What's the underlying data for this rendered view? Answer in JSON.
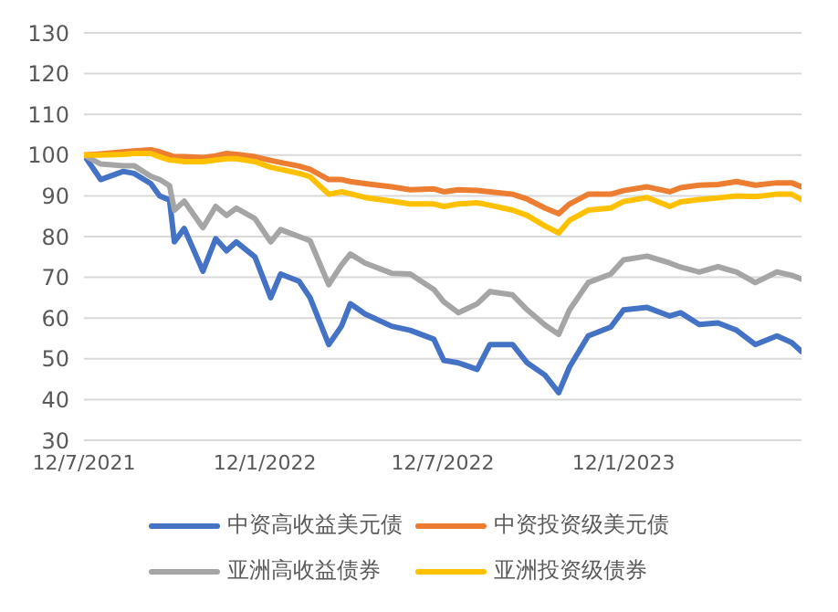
{
  "chart_data": {
    "type": "line",
    "x": [
      "2021-07-12",
      "2021-07-29",
      "2021-08-21",
      "2021-09-01",
      "2021-09-18",
      "2021-09-27",
      "2021-10-07",
      "2021-10-12",
      "2021-10-22",
      "2021-11-10",
      "2021-11-23",
      "2021-12-04",
      "2021-12-14",
      "2022-01-02",
      "2022-01-18",
      "2022-01-28",
      "2022-02-16",
      "2022-02-27",
      "2022-03-18",
      "2022-03-31",
      "2022-04-09",
      "2022-04-24",
      "2022-05-21",
      "2022-06-09",
      "2022-07-03",
      "2022-07-13",
      "2022-07-28",
      "2022-08-16",
      "2022-08-29",
      "2022-09-21",
      "2022-10-06",
      "2022-10-24",
      "2022-11-07",
      "2022-11-18",
      "2022-12-07",
      "2022-12-30",
      "2023-01-12",
      "2023-02-05",
      "2023-02-28",
      "2023-03-11",
      "2023-03-30",
      "2023-04-18",
      "2023-05-07",
      "2023-05-26",
      "2023-06-17",
      "2023-07-02",
      "2023-07-12"
    ],
    "series": [
      {
        "name": "中资高收益美元债",
        "color": "#4472c4",
        "values": [
          100,
          94,
          96,
          95.5,
          93,
          90,
          89,
          78.7,
          82,
          71.5,
          79.5,
          76.5,
          78.7,
          75,
          65,
          70.8,
          69,
          65,
          53.5,
          58,
          63.5,
          61,
          58,
          57,
          54.8,
          49.6,
          49,
          47.4,
          53.5,
          53.5,
          49,
          46,
          41.7,
          48,
          55.6,
          57.8,
          62,
          62.6,
          60.5,
          61.3,
          58.4,
          58.8,
          57,
          53.5,
          55.6,
          54,
          51.8
        ]
      },
      {
        "name": "中资投资级美元债",
        "color": "#ed7d31",
        "values": [
          100,
          100.3,
          100.8,
          101,
          101.3,
          100.8,
          100,
          99.6,
          99.6,
          99.4,
          99.8,
          100.4,
          100.2,
          99.6,
          98.7,
          98.2,
          97.3,
          96.5,
          94,
          94,
          93.5,
          93,
          92.2,
          91.5,
          91.7,
          91,
          91.5,
          91.3,
          91,
          90.4,
          89.2,
          87,
          85.6,
          88,
          90.4,
          90.4,
          91.3,
          92.2,
          91,
          92,
          92.6,
          92.8,
          93.5,
          92.6,
          93.2,
          93.2,
          92.2
        ]
      },
      {
        "name": "亚洲高收益债券",
        "color": "#a5a5a5",
        "values": [
          100,
          97.8,
          97.4,
          97.4,
          94.8,
          94,
          92.5,
          86.5,
          88.7,
          82.2,
          87.4,
          85.2,
          87,
          84.4,
          78.7,
          81.7,
          80,
          79,
          68.2,
          73,
          75.7,
          73.5,
          71,
          70.8,
          67,
          64,
          61.3,
          63.5,
          66.5,
          65.7,
          62,
          58.3,
          56,
          62,
          68.7,
          70.8,
          74.3,
          75.2,
          73.5,
          72.5,
          71.3,
          72.6,
          71.3,
          68.7,
          71.3,
          70.5,
          69.6
        ]
      },
      {
        "name": "亚洲投资级债券",
        "color": "#ffc000",
        "values": [
          100,
          100,
          100.2,
          100.4,
          100.4,
          99.6,
          98.8,
          98.7,
          98.4,
          98.4,
          98.8,
          99.1,
          99.1,
          98.4,
          97,
          96.5,
          95.5,
          94.7,
          90.4,
          91,
          90.5,
          89.6,
          88.7,
          88,
          88,
          87.4,
          88,
          88.3,
          87.7,
          86.5,
          85.2,
          82.6,
          80.9,
          84,
          86.5,
          87,
          88.6,
          89.6,
          87.4,
          88.5,
          89.1,
          89.5,
          90,
          89.8,
          90.4,
          90.4,
          89.1
        ]
      }
    ],
    "xlim": [
      "2021-07-12",
      "2023-07-12"
    ],
    "xticks": [
      {
        "value": "2021-07-12",
        "label": "12/7/2021"
      },
      {
        "value": "2022-01-12",
        "label": "12/1/2022"
      },
      {
        "value": "2022-07-12",
        "label": "12/7/2022"
      },
      {
        "value": "2023-01-12",
        "label": "12/1/2023"
      }
    ],
    "ylim": [
      30,
      130
    ],
    "yticks": [
      30,
      40,
      50,
      60,
      70,
      80,
      90,
      100,
      110,
      120,
      130
    ],
    "grid": "y",
    "legend": "bottom"
  }
}
